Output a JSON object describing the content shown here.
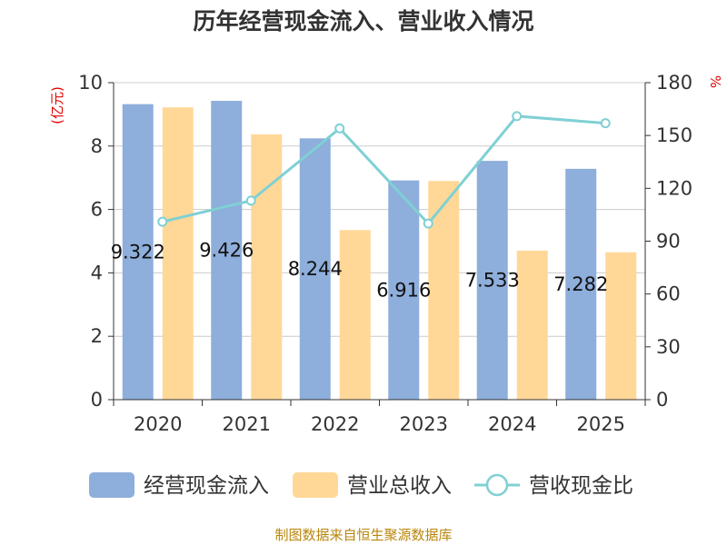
{
  "title": "历年经营现金流入、营业收入情况",
  "footer": "制图数据来自恒生聚源数据库",
  "chart_data": {
    "type": "bar",
    "title": "历年经营现金流入、营业收入情况",
    "categories": [
      "2020",
      "2021",
      "2022",
      "2023",
      "2024",
      "2025"
    ],
    "left_unit": "(亿元)",
    "right_unit": "%",
    "ylim": [
      0,
      10
    ],
    "y2lim": [
      0,
      180
    ],
    "yticks": [
      0,
      2,
      4,
      6,
      8,
      10
    ],
    "y2ticks": [
      0,
      30,
      60,
      90,
      120,
      150,
      180
    ],
    "grid": true,
    "legend_position": "bottom",
    "series": [
      {
        "name": "经营现金流入",
        "type": "bar",
        "axis": "left",
        "color": "#8eaedb",
        "values": [
          9.322,
          9.426,
          8.244,
          6.916,
          7.533,
          7.282
        ],
        "labels": [
          "9.322",
          "9.426",
          "8.244",
          "6.916",
          "7.533",
          "7.282"
        ]
      },
      {
        "name": "营业总收入",
        "type": "bar",
        "axis": "left",
        "color": "#ffd898",
        "values": [
          9.22,
          8.37,
          5.35,
          6.9,
          4.7,
          4.65
        ]
      },
      {
        "name": "营收现金比",
        "type": "line",
        "axis": "right",
        "color": "#7fd0d4",
        "values": [
          101,
          113,
          154,
          100,
          161,
          157
        ]
      }
    ]
  }
}
